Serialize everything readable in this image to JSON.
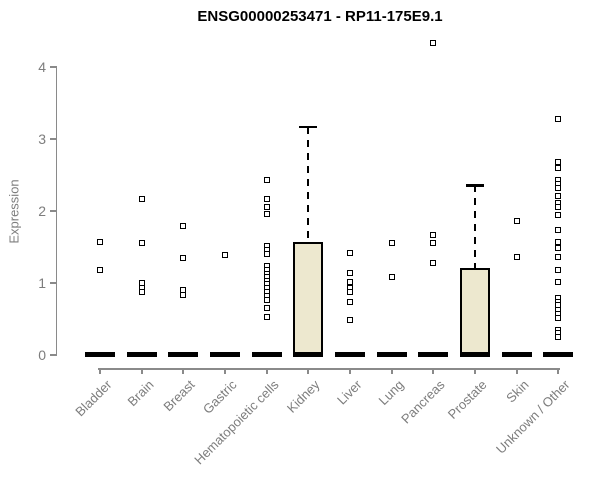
{
  "title": "ENSG00000253471 - RP11-175E9.1",
  "colors": {
    "box_fill": "#ede8cf",
    "box_border": "#000000",
    "axis": "#8a8a8a",
    "tick_label": "#7d7d7d",
    "point": "#000000",
    "title": "#000000"
  },
  "chart_data": {
    "type": "box",
    "title": "ENSG00000253471 - RP11-175E9.1",
    "xlabel": "",
    "ylabel": "Expression",
    "ylim": [
      0,
      4
    ],
    "yticks": [
      0,
      1,
      2,
      3,
      4
    ],
    "grid": false,
    "legend": "none",
    "categories": [
      "Bladder",
      "Brain",
      "Breast",
      "Gastric",
      "Hematopoietic cells",
      "Kidney",
      "Liver",
      "Lung",
      "Pancreas",
      "Prostate",
      "Skin",
      "Unknown / Other"
    ],
    "boxes": [
      {
        "category": "Bladder",
        "median": 0,
        "q1": 0,
        "q3": 0,
        "whisker_low": 0,
        "whisker_high": 0,
        "points": [
          1.57,
          1.18
        ]
      },
      {
        "category": "Brain",
        "median": 0,
        "q1": 0,
        "q3": 0,
        "whisker_low": 0,
        "whisker_high": 0,
        "points": [
          2.17,
          1.56,
          1.0,
          0.93,
          0.87
        ]
      },
      {
        "category": "Breast",
        "median": 0,
        "q1": 0,
        "q3": 0,
        "whisker_low": 0,
        "whisker_high": 0,
        "points": [
          1.79,
          1.35,
          0.9,
          0.83
        ]
      },
      {
        "category": "Gastric",
        "median": 0,
        "q1": 0,
        "q3": 0,
        "whisker_low": 0,
        "whisker_high": 0,
        "points": [
          1.39
        ]
      },
      {
        "category": "Hematopoietic cells",
        "median": 0,
        "q1": 0,
        "q3": 0,
        "whisker_low": 0,
        "whisker_high": 0,
        "points": [
          2.43,
          2.16,
          2.06,
          1.96,
          1.52,
          1.46,
          1.4,
          1.24,
          1.18,
          1.13,
          1.08,
          1.03,
          0.98,
          0.93,
          0.88,
          0.82,
          0.76,
          0.65,
          0.53
        ]
      },
      {
        "category": "Kidney",
        "median": 0,
        "q1": 0,
        "q3": 1.57,
        "whisker_low": 0,
        "whisker_high": 3.17,
        "points": []
      },
      {
        "category": "Liver",
        "median": 0,
        "q1": 0,
        "q3": 0,
        "whisker_low": 0,
        "whisker_high": 0,
        "points": [
          1.42,
          1.14,
          1.01,
          0.93,
          0.88,
          0.74,
          0.49
        ]
      },
      {
        "category": "Lung",
        "median": 0,
        "q1": 0,
        "q3": 0,
        "whisker_low": 0,
        "whisker_high": 0,
        "points": [
          1.56,
          1.08
        ]
      },
      {
        "category": "Pancreas",
        "median": 0,
        "q1": 0,
        "q3": 0,
        "whisker_low": 0,
        "whisker_high": 0,
        "points": [
          4.33,
          1.67,
          1.56,
          1.28
        ]
      },
      {
        "category": "Prostate",
        "median": 0,
        "q1": 0,
        "q3": 1.21,
        "whisker_low": 0,
        "whisker_high": 2.36,
        "points": []
      },
      {
        "category": "Skin",
        "median": 0,
        "q1": 0,
        "q3": 0,
        "whisker_low": 0,
        "whisker_high": 0,
        "points": [
          1.86,
          1.36
        ]
      },
      {
        "category": "Unknown / Other",
        "median": 0,
        "q1": 0,
        "q3": 0,
        "whisker_low": 0,
        "whisker_high": 0,
        "points": [
          3.28,
          2.68,
          2.6,
          2.43,
          2.37,
          2.32,
          2.21,
          2.11,
          2.06,
          1.94,
          1.74,
          1.57,
          1.49,
          1.36,
          1.18,
          1.01,
          0.79,
          0.74,
          0.69,
          0.63,
          0.57,
          0.51,
          0.35,
          0.3,
          0.25
        ]
      }
    ]
  }
}
